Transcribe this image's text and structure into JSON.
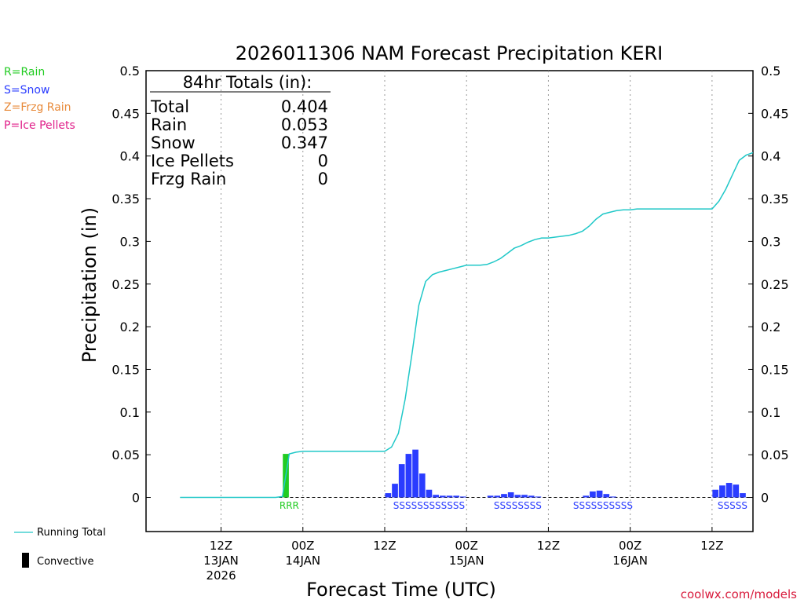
{
  "colors": {
    "rain": "#22cc22",
    "snow": "#2a3cff",
    "frzg_rain": "#e88a3a",
    "ice_pellets": "#e0208a",
    "running_total": "#20c8c8",
    "convective": "#000000",
    "credit": "#d81b3c"
  },
  "legend": {
    "rain": "R=Rain",
    "snow": "S=Snow",
    "frzg_rain": "Z=Frzg Rain",
    "ice_pellets": "P=Ice Pellets",
    "running_total": "Running Total",
    "convective": "Convective"
  },
  "credit": "coolwx.com/models",
  "chart_data": {
    "type": "bar",
    "title": "2026011306 NAM Forecast Precipitation KERI",
    "ylabel": "Precipitation (in)",
    "xlabel": "Forecast Time (UTC)",
    "ylim": [
      -0.04,
      0.5
    ],
    "yticks": [
      0,
      0.05,
      0.1,
      0.15,
      0.2,
      0.25,
      0.3,
      0.35,
      0.4,
      0.45,
      0.5
    ],
    "ytick_labels": [
      "0",
      "0.05",
      "0.1",
      "0.15",
      "0.2",
      "0.25",
      "0.3",
      "0.35",
      "0.4",
      "0.45",
      "0.5"
    ],
    "x_unit": "forecast hour",
    "xlim": [
      -5,
      84
    ],
    "xticks": [
      {
        "hour": 6,
        "lines": [
          "12Z",
          "13JAN",
          "2026"
        ]
      },
      {
        "hour": 18,
        "lines": [
          "00Z",
          "14JAN"
        ]
      },
      {
        "hour": 30,
        "lines": [
          "12Z"
        ]
      },
      {
        "hour": 42,
        "lines": [
          "00Z",
          "15JAN"
        ]
      },
      {
        "hour": 54,
        "lines": [
          "12Z"
        ]
      },
      {
        "hour": 66,
        "lines": [
          "00Z",
          "16JAN"
        ]
      },
      {
        "hour": 78,
        "lines": [
          "12Z"
        ]
      }
    ],
    "totals": {
      "header": "84hr Totals (in):",
      "rows": [
        {
          "label": "Total",
          "value": "0.404"
        },
        {
          "label": "Rain",
          "value": "0.053"
        },
        {
          "label": "Snow",
          "value": "0.347"
        },
        {
          "label": "Ice Pellets",
          "value": "0"
        },
        {
          "label": "Frzg Rain",
          "value": "0"
        }
      ]
    },
    "hourly_precip": [
      {
        "hour": 16,
        "value": 0.051,
        "type": "rain"
      },
      {
        "hour": 31,
        "value": 0.005,
        "type": "snow"
      },
      {
        "hour": 32,
        "value": 0.016,
        "type": "snow"
      },
      {
        "hour": 33,
        "value": 0.039,
        "type": "snow"
      },
      {
        "hour": 34,
        "value": 0.051,
        "type": "snow"
      },
      {
        "hour": 35,
        "value": 0.056,
        "type": "snow"
      },
      {
        "hour": 36,
        "value": 0.028,
        "type": "snow"
      },
      {
        "hour": 37,
        "value": 0.009,
        "type": "snow"
      },
      {
        "hour": 38,
        "value": 0.003,
        "type": "snow"
      },
      {
        "hour": 39,
        "value": 0.002,
        "type": "snow"
      },
      {
        "hour": 40,
        "value": 0.002,
        "type": "snow"
      },
      {
        "hour": 41,
        "value": 0.002,
        "type": "snow"
      },
      {
        "hour": 42,
        "value": 0.001,
        "type": "snow"
      },
      {
        "hour": 46,
        "value": 0.002,
        "type": "snow"
      },
      {
        "hour": 47,
        "value": 0.002,
        "type": "snow"
      },
      {
        "hour": 48,
        "value": 0.004,
        "type": "snow"
      },
      {
        "hour": 49,
        "value": 0.006,
        "type": "snow"
      },
      {
        "hour": 50,
        "value": 0.003,
        "type": "snow"
      },
      {
        "hour": 51,
        "value": 0.003,
        "type": "snow"
      },
      {
        "hour": 52,
        "value": 0.002,
        "type": "snow"
      },
      {
        "hour": 53,
        "value": 0.001,
        "type": "snow"
      },
      {
        "hour": 60,
        "value": 0.002,
        "type": "snow"
      },
      {
        "hour": 61,
        "value": 0.007,
        "type": "snow"
      },
      {
        "hour": 62,
        "value": 0.008,
        "type": "snow"
      },
      {
        "hour": 63,
        "value": 0.004,
        "type": "snow"
      },
      {
        "hour": 64,
        "value": 0.001,
        "type": "snow"
      },
      {
        "hour": 79,
        "value": 0.009,
        "type": "snow"
      },
      {
        "hour": 80,
        "value": 0.014,
        "type": "snow"
      },
      {
        "hour": 81,
        "value": 0.017,
        "type": "snow"
      },
      {
        "hour": 82,
        "value": 0.015,
        "type": "snow"
      },
      {
        "hour": 83,
        "value": 0.005,
        "type": "snow"
      }
    ],
    "running_total": {
      "hours": [
        0,
        14,
        15,
        16,
        17,
        18,
        30,
        31,
        32,
        33,
        34,
        35,
        36,
        37,
        38,
        39,
        40,
        41,
        42,
        43,
        44,
        45,
        46,
        47,
        48,
        49,
        50,
        51,
        52,
        53,
        54,
        55,
        56,
        57,
        58,
        59,
        60,
        61,
        62,
        63,
        64,
        65,
        66,
        67,
        68,
        69,
        70,
        71,
        72,
        73,
        74,
        75,
        76,
        77,
        78,
        79,
        80,
        81,
        82,
        83,
        84
      ],
      "values": [
        0,
        0,
        0.001,
        0.051,
        0.053,
        0.054,
        0.054,
        0.059,
        0.075,
        0.115,
        0.168,
        0.225,
        0.253,
        0.261,
        0.264,
        0.266,
        0.268,
        0.27,
        0.272,
        0.272,
        0.272,
        0.273,
        0.276,
        0.28,
        0.286,
        0.292,
        0.295,
        0.299,
        0.302,
        0.304,
        0.304,
        0.305,
        0.306,
        0.307,
        0.309,
        0.312,
        0.318,
        0.326,
        0.332,
        0.334,
        0.336,
        0.337,
        0.337,
        0.338,
        0.338,
        0.338,
        0.338,
        0.338,
        0.338,
        0.338,
        0.338,
        0.338,
        0.338,
        0.338,
        0.338,
        0.347,
        0.361,
        0.378,
        0.395,
        0.401,
        0.404
      ]
    },
    "ptype_markers": [
      {
        "text": "RRR",
        "hour": 16,
        "type": "rain"
      },
      {
        "text": "SSSSSSSSSSSS",
        "hour": 36.5,
        "type": "snow"
      },
      {
        "text": "SSSSSSSS",
        "hour": 49.5,
        "type": "snow"
      },
      {
        "text": "SSSSSSSSSS",
        "hour": 62,
        "type": "snow"
      },
      {
        "text": "SSSSS",
        "hour": 81,
        "type": "snow"
      }
    ]
  }
}
